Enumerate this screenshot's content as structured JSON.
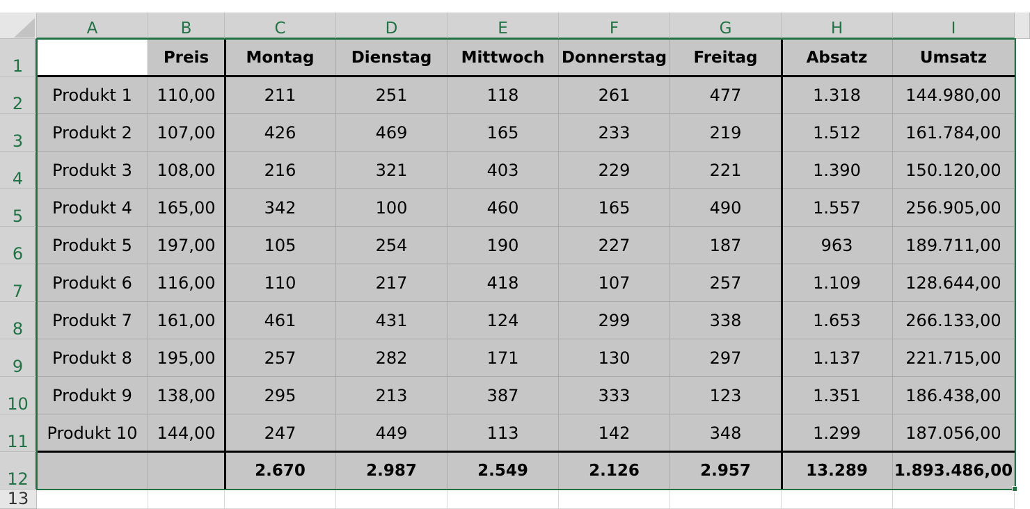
{
  "columns": [
    "A",
    "B",
    "C",
    "D",
    "E",
    "F",
    "G",
    "H",
    "I"
  ],
  "rows": [
    "1",
    "2",
    "3",
    "4",
    "5",
    "6",
    "7",
    "8",
    "9",
    "10",
    "11",
    "12",
    "13"
  ],
  "header": [
    "",
    "Preis",
    "Montag",
    "Dienstag",
    "Mittwoch",
    "Donnerstag",
    "Freitag",
    "Absatz",
    "Umsatz"
  ],
  "body": [
    [
      "Produkt 1",
      "110,00",
      "211",
      "251",
      "118",
      "261",
      "477",
      "1.318",
      "144.980,00"
    ],
    [
      "Produkt 2",
      "107,00",
      "426",
      "469",
      "165",
      "233",
      "219",
      "1.512",
      "161.784,00"
    ],
    [
      "Produkt 3",
      "108,00",
      "216",
      "321",
      "403",
      "229",
      "221",
      "1.390",
      "150.120,00"
    ],
    [
      "Produkt 4",
      "165,00",
      "342",
      "100",
      "460",
      "165",
      "490",
      "1.557",
      "256.905,00"
    ],
    [
      "Produkt 5",
      "197,00",
      "105",
      "254",
      "190",
      "227",
      "187",
      "963",
      "189.711,00"
    ],
    [
      "Produkt 6",
      "116,00",
      "110",
      "217",
      "418",
      "107",
      "257",
      "1.109",
      "128.644,00"
    ],
    [
      "Produkt 7",
      "161,00",
      "461",
      "431",
      "124",
      "299",
      "338",
      "1.653",
      "266.133,00"
    ],
    [
      "Produkt 8",
      "195,00",
      "257",
      "282",
      "171",
      "130",
      "297",
      "1.137",
      "221.715,00"
    ],
    [
      "Produkt 9",
      "138,00",
      "295",
      "213",
      "387",
      "333",
      "123",
      "1.351",
      "186.438,00"
    ],
    [
      "Produkt 10",
      "144,00",
      "247",
      "449",
      "113",
      "142",
      "348",
      "1.299",
      "187.056,00"
    ]
  ],
  "totals": [
    "",
    "",
    "2.670",
    "2.987",
    "2.549",
    "2.126",
    "2.957",
    "13.289",
    "1.893.486,00"
  ],
  "colors": {
    "accent": "#217346",
    "selection_fill": "#c6c6c6",
    "header_bg": "#e6e6e6"
  }
}
